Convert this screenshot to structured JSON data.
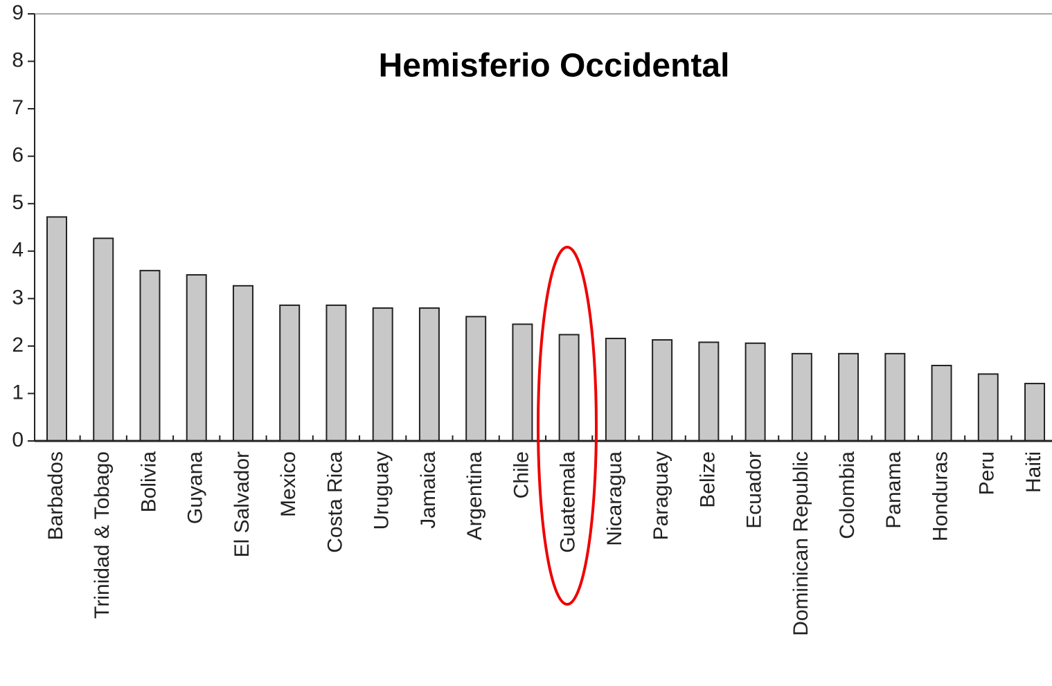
{
  "chart_data": {
    "type": "bar",
    "title": "Hemisferio Occidental",
    "categories": [
      "Barbados",
      "Trinidad & Tobago",
      "Bolivia",
      "Guyana",
      "El Salvador",
      "Mexico",
      "Costa Rica",
      "Uruguay",
      "Jamaica",
      "Argentina",
      "Chile",
      "Guatemala",
      "Nicaragua",
      "Paraguay",
      "Belize",
      "Ecuador",
      "Dominican Republic",
      "Colombia",
      "Panama",
      "Honduras",
      "Peru",
      "Haiti"
    ],
    "values": [
      4.72,
      4.27,
      3.59,
      3.5,
      3.27,
      2.86,
      2.86,
      2.8,
      2.8,
      2.62,
      2.46,
      2.24,
      2.16,
      2.13,
      2.08,
      2.06,
      1.84,
      1.84,
      1.84,
      1.59,
      1.41,
      1.21
    ],
    "color": "#c8c8c8",
    "ylim": [
      0,
      9
    ],
    "yticks": [
      0,
      1,
      2,
      3,
      4,
      5,
      6,
      7,
      8,
      9
    ]
  }
}
